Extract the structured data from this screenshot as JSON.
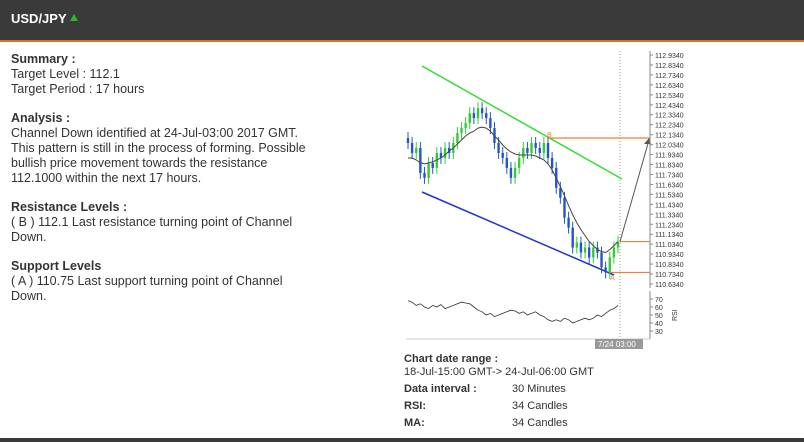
{
  "header": {
    "pair": "USD/JPY",
    "trend_icon": "up-triangle-icon",
    "accent_color": "#e07020",
    "trend_color": "#2fb52f"
  },
  "summary": {
    "title": "Summary :",
    "target_level": "Target Level : 112.1",
    "target_period": "Target Period : 17 hours"
  },
  "analysis": {
    "title": "Analysis :",
    "lines": [
      "Channel Down identified at 24-Jul-03:00 2017 GMT.",
      "This pattern is still in the process of forming. Possible",
      "bullish price movement towards the resistance",
      "112.1000 within the next 17 hours."
    ]
  },
  "resistance": {
    "title": "Resistance Levels :",
    "lines": [
      "( B ) 112.1 Last resistance turning point of Channel",
      "Down."
    ]
  },
  "support": {
    "title": "Support Levels",
    "lines": [
      "( A ) 110.75 Last support turning point of Channel",
      "Down."
    ]
  },
  "chart_data": {
    "type": "candlestick",
    "price_ticks": [
      "112.9340",
      "112.8340",
      "112.7340",
      "112.6340",
      "112.5340",
      "112.4340",
      "112.3340",
      "112.2340",
      "112.1340",
      "112.0340",
      "111.9340",
      "111.8340",
      "111.7340",
      "111.6340",
      "111.5340",
      "111.4340",
      "111.3340",
      "111.2340",
      "111.1340",
      "111.0340",
      "110.9340",
      "110.8340",
      "110.7340",
      "110.6340"
    ],
    "ylim": [
      110.634,
      112.934
    ],
    "rsi_ticks": [
      "70",
      "60",
      "50",
      "40",
      "30"
    ],
    "rsi_label": "RSI",
    "time_label": "7/24 03:00",
    "point_labels": {
      "a": "A",
      "b": "B"
    },
    "colors": {
      "bull": "#33cc33",
      "bear": "#2255cc",
      "upper_channel": "#33dd33",
      "lower_channel": "#2233cc",
      "levels": "#f08030",
      "ma": "#444444",
      "rsi": "#333333"
    },
    "resistance_level": 112.1,
    "support_level": 110.75,
    "current_level": 111.06,
    "close_series": [
      112.05,
      111.95,
      112.0,
      111.75,
      111.7,
      111.85,
      111.8,
      111.95,
      111.9,
      112.0,
      111.95,
      112.05,
      112.15,
      112.2,
      112.25,
      112.35,
      112.3,
      112.4,
      112.35,
      112.3,
      112.2,
      112.05,
      111.95,
      111.9,
      111.8,
      111.7,
      111.8,
      111.9,
      112.0,
      111.95,
      112.05,
      112.0,
      111.95,
      112.05,
      111.9,
      111.8,
      111.6,
      111.5,
      111.3,
      111.2,
      111.0,
      111.05,
      110.95,
      111.0,
      110.9,
      111.0,
      110.95,
      110.8,
      110.75,
      110.9,
      111.0,
      111.06
    ],
    "ma_series": [
      111.9,
      111.9,
      111.88,
      111.85,
      111.84,
      111.85,
      111.86,
      111.88,
      111.9,
      111.93,
      111.97,
      112.0,
      112.04,
      112.08,
      112.12,
      112.15,
      112.17,
      112.2,
      112.21,
      112.2,
      112.17,
      112.12,
      112.08,
      112.03,
      111.99,
      111.96,
      111.94,
      111.93,
      111.93,
      111.93,
      111.93,
      111.92,
      111.9,
      111.88,
      111.84,
      111.78,
      111.7,
      111.61,
      111.52,
      111.42,
      111.33,
      111.25,
      111.18,
      111.12,
      111.06,
      111.02,
      110.98,
      110.96,
      110.95,
      110.98,
      111.02,
      111.06
    ],
    "rsi_series": [
      68,
      66,
      62,
      64,
      60,
      58,
      62,
      60,
      63,
      58,
      60,
      62,
      64,
      66,
      65,
      64,
      60,
      56,
      54,
      50,
      52,
      48,
      50,
      52,
      54,
      56,
      55,
      52,
      54,
      50,
      52,
      54,
      50,
      48,
      44,
      42,
      44,
      42,
      46,
      44,
      40,
      42,
      44,
      46,
      44,
      46,
      50,
      48,
      52,
      56,
      58,
      62
    ]
  },
  "details": {
    "range_label": "Chart date range :",
    "range_value": "18-Jul-15:00 GMT-> 24-Jul-06:00 GMT",
    "rows": [
      {
        "key": "Data interval :",
        "value": "30 Minutes"
      },
      {
        "key": "RSI:",
        "value": "34 Candles"
      },
      {
        "key": "MA:",
        "value": "34 Candles"
      }
    ]
  }
}
